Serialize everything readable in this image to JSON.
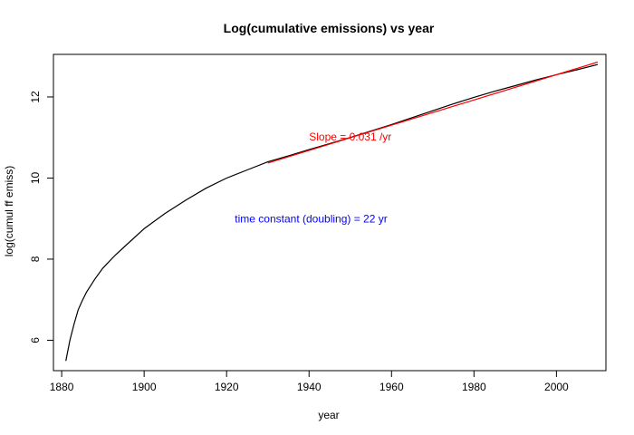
{
  "chart_data": {
    "type": "line",
    "title": "Log(cumulative emissions) vs year",
    "xlabel": "year",
    "ylabel": "log(cumul ff emiss)",
    "xlim": [
      1878,
      2012
    ],
    "ylim": [
      5.25,
      13.05
    ],
    "xticks": [
      1880,
      1900,
      1920,
      1940,
      1960,
      1980,
      2000
    ],
    "yticks": [
      6,
      8,
      10,
      12
    ],
    "grid": false,
    "series": [
      {
        "color": "#000000",
        "x": [
          1881,
          1882,
          1883,
          1884,
          1885,
          1886,
          1888,
          1890,
          1893,
          1896,
          1900,
          1905,
          1910,
          1915,
          1920,
          1925,
          1930,
          1935,
          1940,
          1945,
          1950,
          1955,
          1960,
          1965,
          1970,
          1975,
          1980,
          1985,
          1990,
          1995,
          2000,
          2005,
          2010
        ],
        "y": [
          5.49,
          6.0,
          6.4,
          6.75,
          6.98,
          7.18,
          7.5,
          7.78,
          8.1,
          8.38,
          8.75,
          9.12,
          9.45,
          9.75,
          10.0,
          10.2,
          10.4,
          10.55,
          10.7,
          10.85,
          11.0,
          11.16,
          11.32,
          11.49,
          11.66,
          11.83,
          11.99,
          12.14,
          12.28,
          12.42,
          12.55,
          12.67,
          12.8
        ]
      },
      {
        "color": "#ff0000",
        "x": [
          1930,
          2010
        ],
        "y": [
          10.37,
          12.86
        ]
      }
    ],
    "annotations": [
      {
        "text": "Slope = 0.031 /yr",
        "x": 1950,
        "y": 11.0,
        "color": "#ff0000"
      },
      {
        "text": "time constant (doubling) = 22 yr",
        "x": 1940.5,
        "y": 8.97,
        "color": "#0000ff"
      }
    ]
  }
}
